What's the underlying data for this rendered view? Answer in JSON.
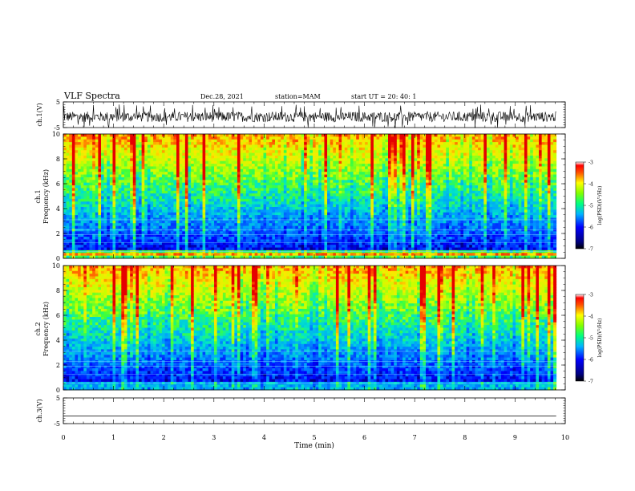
{
  "chart_data": {
    "type": "heatmap",
    "header": {
      "title": "VLF Spectra",
      "date": "Dec.28, 2021",
      "station": "station=MAM",
      "start": "start  UT =   20: 40: 1"
    },
    "xlabel": "Time  (min)",
    "xlim": [
      0,
      10
    ],
    "xticks": [
      "0",
      "1",
      "2",
      "3",
      "4",
      "5",
      "6",
      "7",
      "8",
      "9",
      "10"
    ],
    "panels": [
      {
        "kind": "waveform",
        "ylabel": "ch.1(V)",
        "ylim": [
          -5,
          5
        ],
        "yticks": [
          "5",
          "-5"
        ]
      },
      {
        "kind": "spectrogram",
        "ylabel_top": "ch.1",
        "ylabel": "Frequency  (kHz)",
        "ylim": [
          0,
          10
        ],
        "yticks": [
          "0",
          "2",
          "4",
          "6",
          "8",
          "10"
        ],
        "colorbar": {
          "label": "log(PSD)(V²/Hz)",
          "range": [
            -7,
            -3
          ],
          "ticks": [
            "-3",
            "-4",
            "-5",
            "-6",
            "-7"
          ]
        }
      },
      {
        "kind": "spectrogram",
        "ylabel_top": "ch.2",
        "ylabel": "Frequency  (kHz)",
        "ylim": [
          0,
          10
        ],
        "yticks": [
          "0",
          "2",
          "4",
          "6",
          "8",
          "10"
        ],
        "colorbar": {
          "label": "log(PSD)(V²/Hz)",
          "range": [
            -7,
            -3
          ],
          "ticks": [
            "-3",
            "-4",
            "-5",
            "-6",
            "-7"
          ]
        }
      },
      {
        "kind": "waveform",
        "ylabel": "ch.3(V)",
        "ylim": [
          -5,
          5
        ],
        "yticks": [
          "5",
          "-5"
        ]
      }
    ]
  }
}
